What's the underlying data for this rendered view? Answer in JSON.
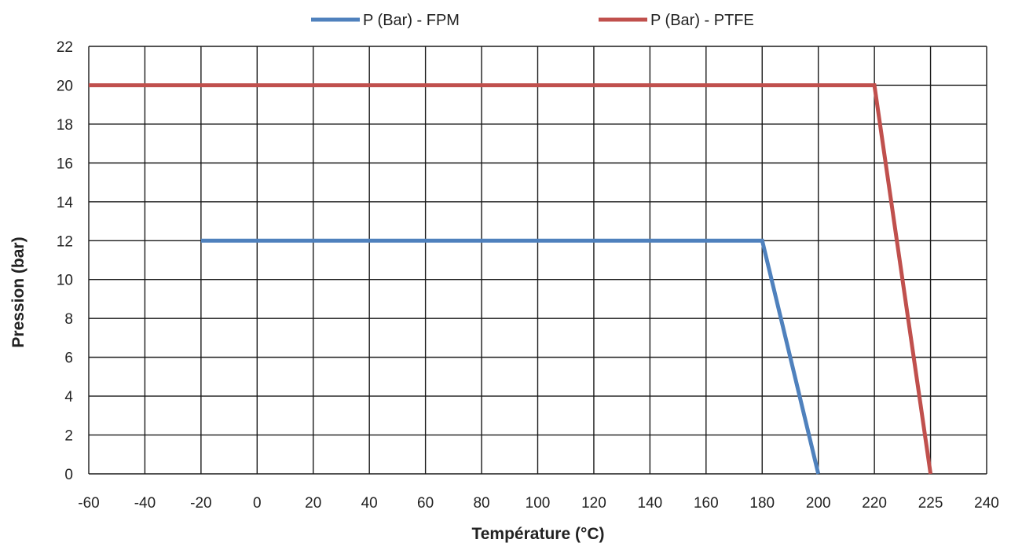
{
  "chart_data": {
    "type": "line",
    "xlabel": "Température (°C)",
    "ylabel": "Pression (bar)",
    "x_ticks": [
      "-60",
      "-40",
      "-20",
      "0",
      "20",
      "40",
      "60",
      "80",
      "100",
      "120",
      "140",
      "160",
      "180",
      "200",
      "220",
      "225",
      "240"
    ],
    "y_ticks": [
      "0",
      "2",
      "4",
      "6",
      "8",
      "10",
      "12",
      "14",
      "16",
      "18",
      "20",
      "22"
    ],
    "ylim": [
      0,
      22
    ],
    "grid": true,
    "legend_position": "top",
    "series": [
      {
        "name": "P (Bar) - FPM",
        "color": "#4f81bd",
        "points": [
          [
            "-20",
            12
          ],
          [
            "180",
            12
          ],
          [
            "200",
            0
          ]
        ]
      },
      {
        "name": "P (Bar) - PTFE",
        "color": "#c0504d",
        "points": [
          [
            "-60",
            20
          ],
          [
            "220",
            20
          ],
          [
            "225",
            0
          ]
        ]
      }
    ]
  }
}
